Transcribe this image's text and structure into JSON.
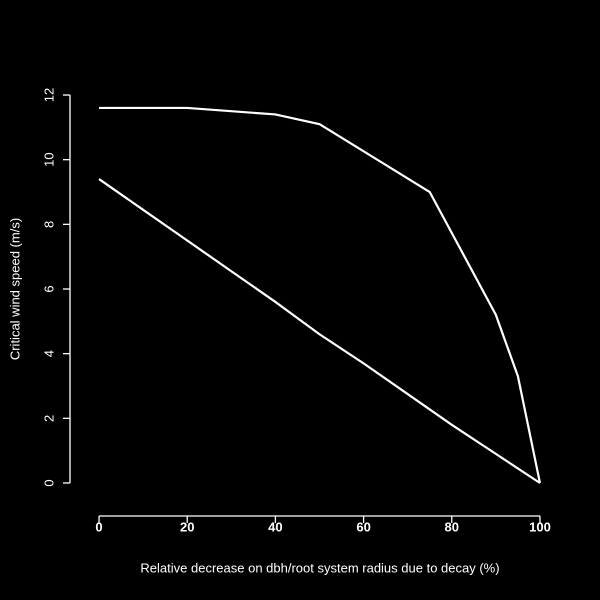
{
  "chart_data": {
    "type": "line",
    "xlabel": "Relative decrease on dbh/root system radius due to decay (%)",
    "ylabel": "Critical wind speed (m/s)",
    "series": [
      {
        "color": "#ffffff",
        "x": [
          0,
          20,
          40,
          50,
          75,
          90,
          95,
          100
        ],
        "values": [
          11.6,
          11.6,
          11.4,
          11.1,
          9.0,
          5.2,
          3.3,
          0
        ]
      },
      {
        "color": "#ffffff",
        "x": [
          0,
          10,
          20,
          30,
          40,
          50,
          60,
          70,
          80,
          90,
          100
        ],
        "values": [
          9.4,
          8.45,
          7.5,
          6.55,
          5.6,
          4.6,
          3.7,
          2.75,
          1.8,
          0.9,
          0
        ]
      }
    ],
    "xlim": [
      -4,
      104
    ],
    "xticks": [
      0,
      20,
      40,
      60,
      80,
      100
    ],
    "ylim": [
      -0.48,
      12.48
    ],
    "yticks": [
      0,
      2,
      4,
      6,
      8,
      10,
      12
    ]
  }
}
